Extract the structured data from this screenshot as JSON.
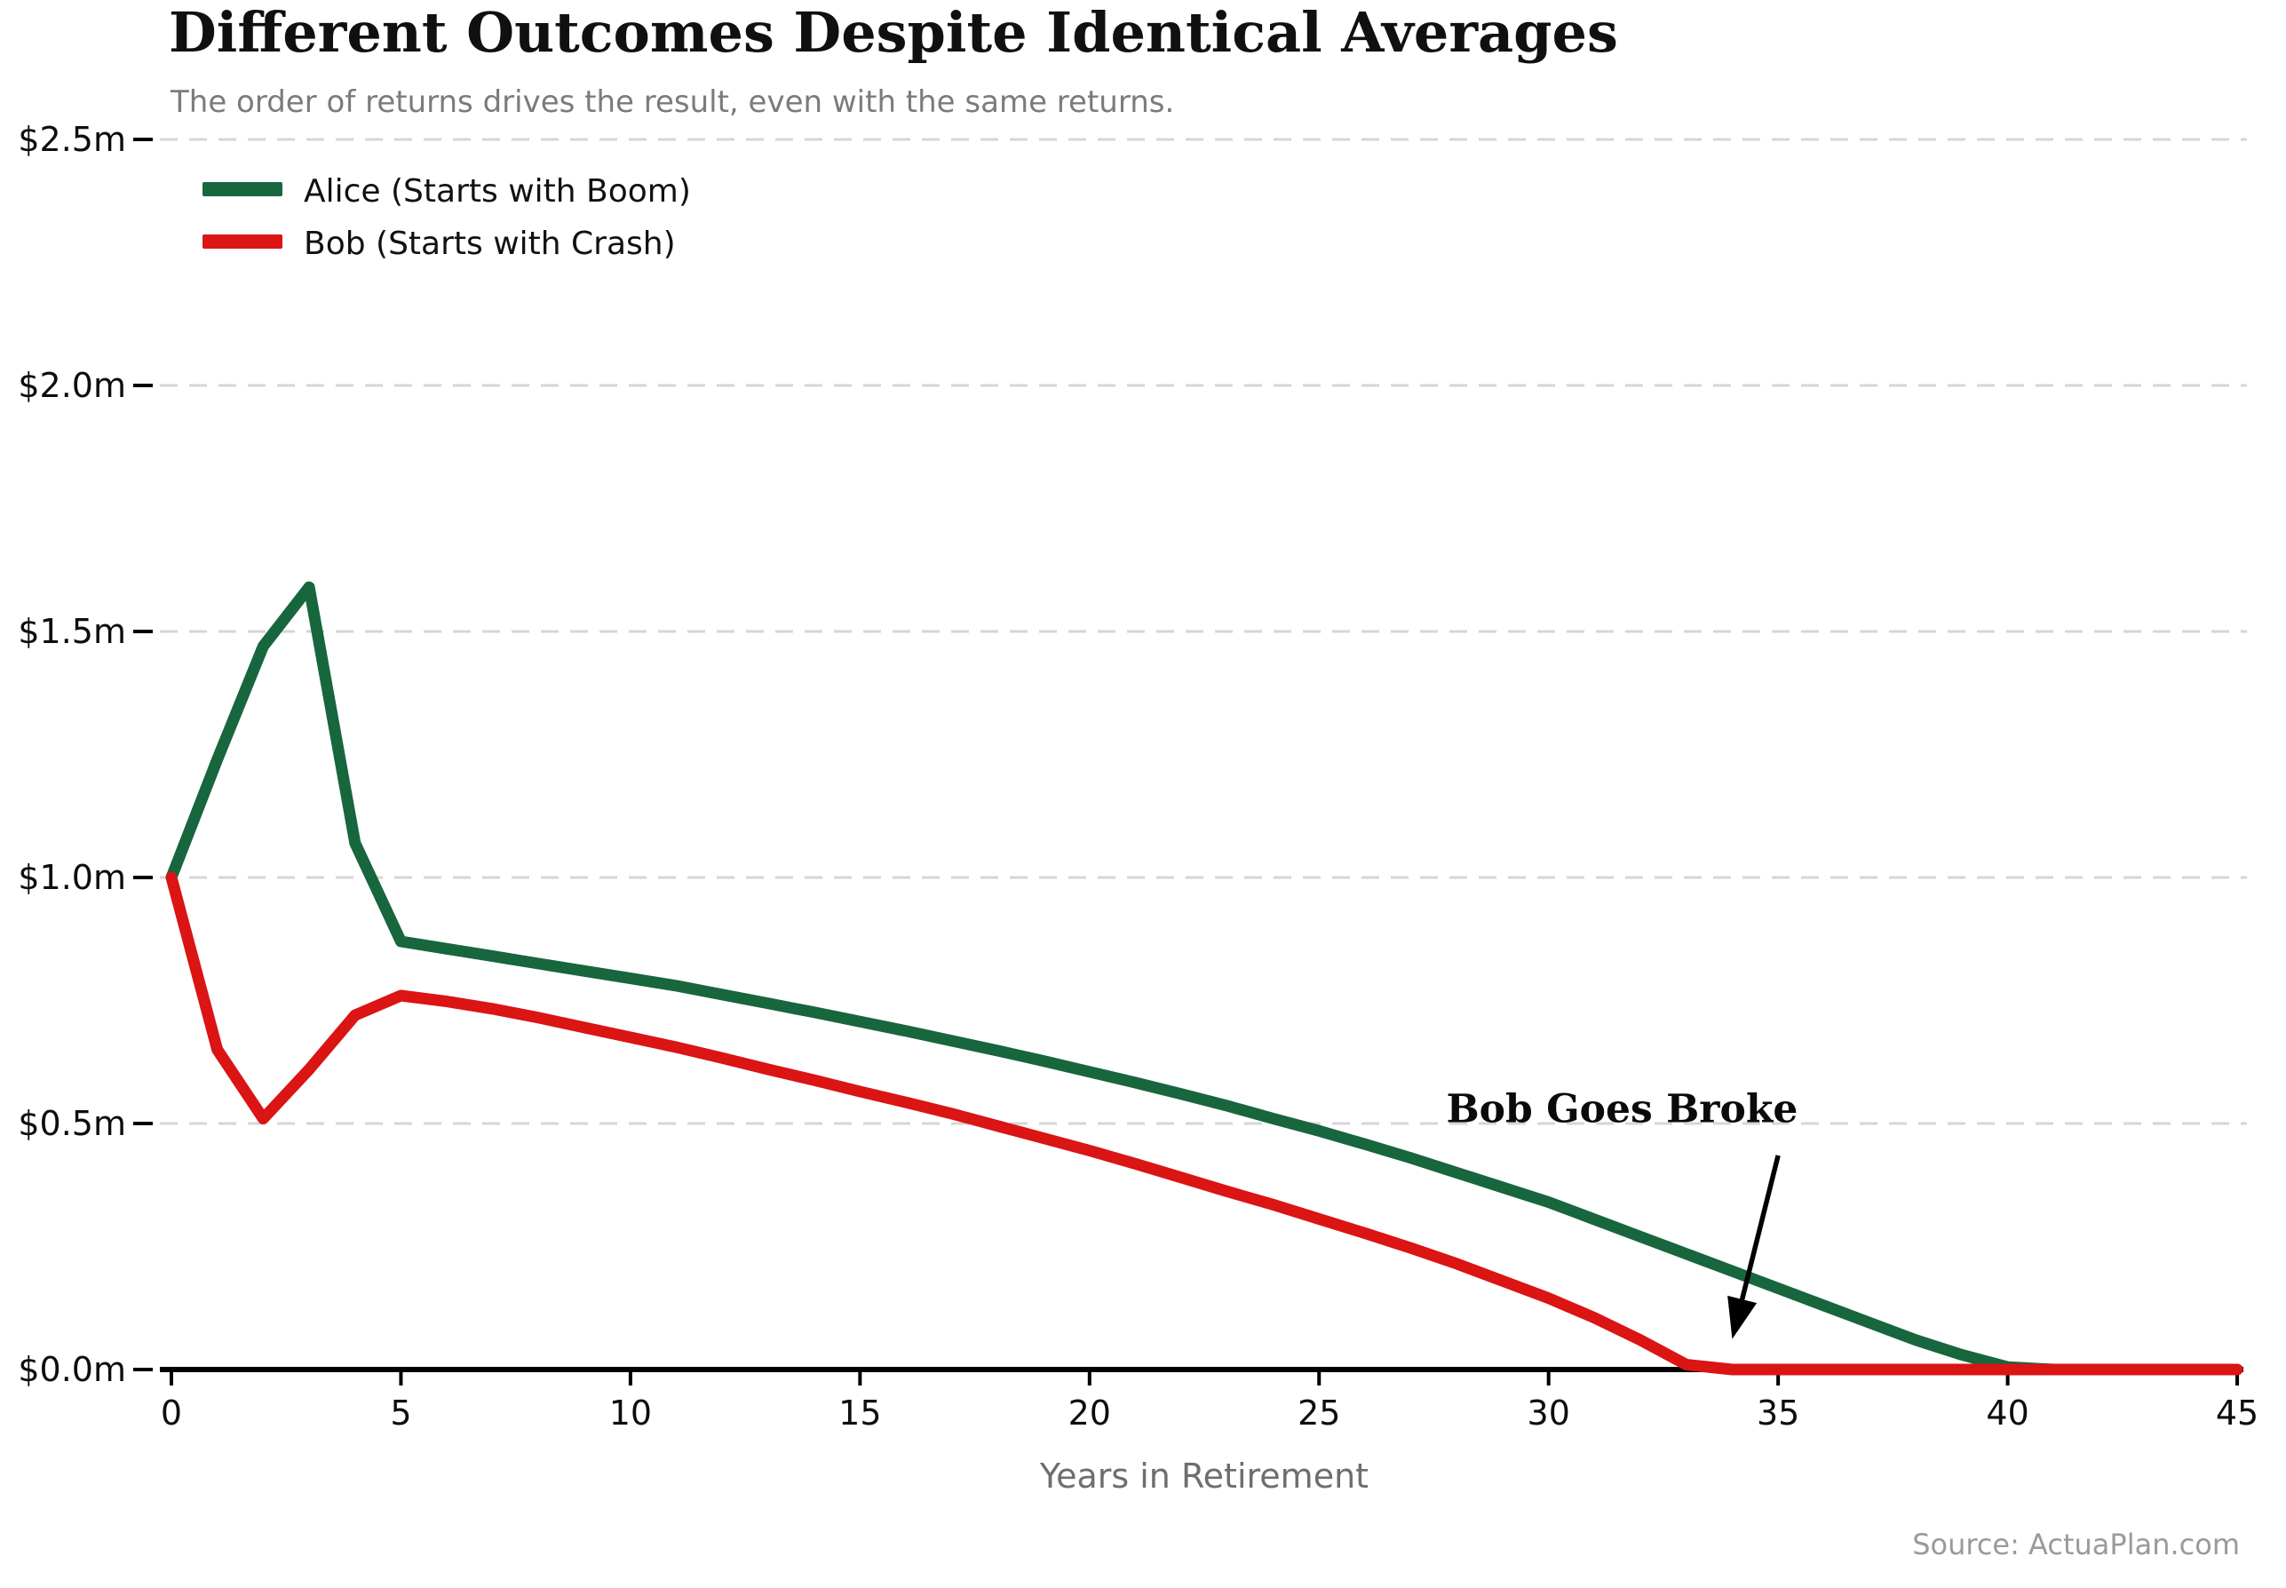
{
  "title": "Different Outcomes Despite Identical Averages",
  "subtitle": "The order of returns drives the result, even with the same returns.",
  "source": "Source: ActuaPlan.com",
  "colors": {
    "alice_green": "#17663E",
    "bob_red": "#DB1414",
    "grid_gray": "#d6d6d6",
    "axis_black": "#000000",
    "subtitle_gray": "#7b7b7b",
    "axis_label_gray": "#6e6e6e",
    "source_gray": "#9a9a9a"
  },
  "chart_data": {
    "type": "line",
    "title": "Different Outcomes Despite Identical Averages",
    "subtitle": "The order of returns drives the result, even with the same returns.",
    "xlabel": "Years in Retirement",
    "ylabel": "",
    "xlim": [
      0,
      45
    ],
    "ylim": [
      0,
      2.5
    ],
    "grid": "horizontal dashed",
    "legend_position": "upper-left",
    "x": [
      0,
      1,
      2,
      3,
      4,
      5,
      6,
      7,
      8,
      9,
      10,
      11,
      12,
      13,
      14,
      15,
      16,
      17,
      18,
      19,
      20,
      21,
      22,
      23,
      24,
      25,
      26,
      27,
      28,
      29,
      30,
      31,
      32,
      33,
      34,
      35,
      36,
      37,
      38,
      39,
      40,
      41,
      42,
      43,
      44,
      45
    ],
    "series": [
      {
        "name": "Alice (Starts with Boom)",
        "color": "#17663E",
        "values": [
          1.0,
          1.24,
          1.47,
          1.59,
          1.07,
          0.87,
          0.855,
          0.84,
          0.825,
          0.81,
          0.795,
          0.78,
          0.762,
          0.744,
          0.726,
          0.707,
          0.688,
          0.668,
          0.648,
          0.627,
          0.605,
          0.583,
          0.56,
          0.536,
          0.51,
          0.485,
          0.458,
          0.43,
          0.4,
          0.37,
          0.34,
          0.305,
          0.27,
          0.235,
          0.2,
          0.165,
          0.13,
          0.095,
          0.06,
          0.03,
          0.005,
          0,
          0,
          0,
          0,
          0
        ]
      },
      {
        "name": "Bob (Starts with Crash)",
        "color": "#DB1414",
        "values": [
          1.0,
          0.65,
          0.51,
          0.61,
          0.72,
          0.76,
          0.748,
          0.733,
          0.715,
          0.695,
          0.675,
          0.655,
          0.633,
          0.61,
          0.588,
          0.565,
          0.543,
          0.52,
          0.495,
          0.47,
          0.445,
          0.418,
          0.39,
          0.362,
          0.335,
          0.306,
          0.277,
          0.247,
          0.215,
          0.18,
          0.145,
          0.105,
          0.06,
          0.01,
          0,
          0,
          0,
          0,
          0,
          0,
          0,
          0,
          0,
          0,
          0,
          0
        ]
      }
    ],
    "xticks": [
      0,
      5,
      10,
      15,
      20,
      25,
      30,
      35,
      40,
      45
    ],
    "yticks": [
      {
        "v": 2.5,
        "label": "$2.5m"
      },
      {
        "v": 2.0,
        "label": "$2.0m"
      },
      {
        "v": 1.5,
        "label": "$1.5m"
      },
      {
        "v": 1.0,
        "label": "$1.0m"
      },
      {
        "v": 0.5,
        "label": "$0.5m"
      },
      {
        "v": 0.0,
        "label": "$0.0m"
      }
    ],
    "annotation": {
      "text": "Bob Goes Broke",
      "text_x": 31.6,
      "text_y": 0.53,
      "arrow_from_x": 35.0,
      "arrow_from_y": 0.435,
      "arrow_to_x": 34.0,
      "arrow_to_y": 0.062
    }
  }
}
